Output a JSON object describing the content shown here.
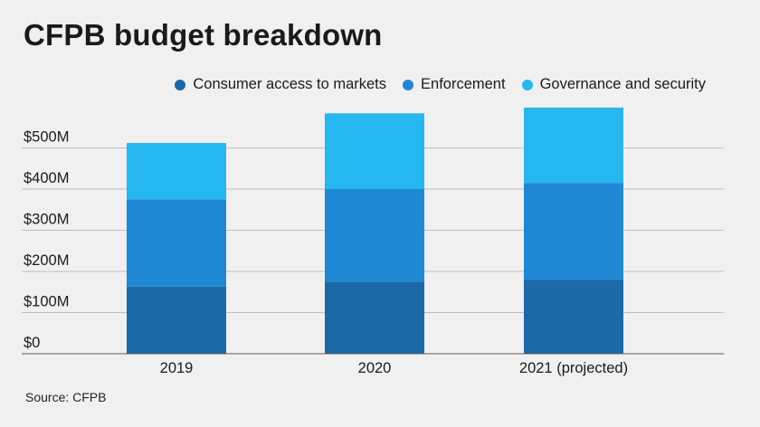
{
  "title": "CFPB budget breakdown",
  "source": "Source: CFPB",
  "colors": {
    "consumer": "#1b69a6",
    "enforcement": "#1f88d4",
    "governance": "#26b6f0",
    "grid": "#bdbdbd",
    "axis": "#5a5a5a"
  },
  "chart_data": {
    "type": "bar",
    "stacked": true,
    "categories": [
      "2019",
      "2020",
      "2021 (projected)"
    ],
    "series": [
      {
        "name": "Consumer access to markets",
        "values": [
          163,
          175,
          180
        ],
        "color": "#1b69a6"
      },
      {
        "name": "Enforcement",
        "values": [
          212,
          225,
          235
        ],
        "color": "#1f88d4"
      },
      {
        "name": "Governance and security",
        "values": [
          137,
          184,
          183
        ],
        "color": "#26b6f0"
      }
    ],
    "yticks": [
      "$0",
      "$100M",
      "$200M",
      "$300M",
      "$400M",
      "$500M"
    ],
    "ytick_values": [
      0,
      100,
      200,
      300,
      400,
      500
    ],
    "ylim": [
      0,
      600
    ],
    "grid": true,
    "legend": "top-right"
  }
}
